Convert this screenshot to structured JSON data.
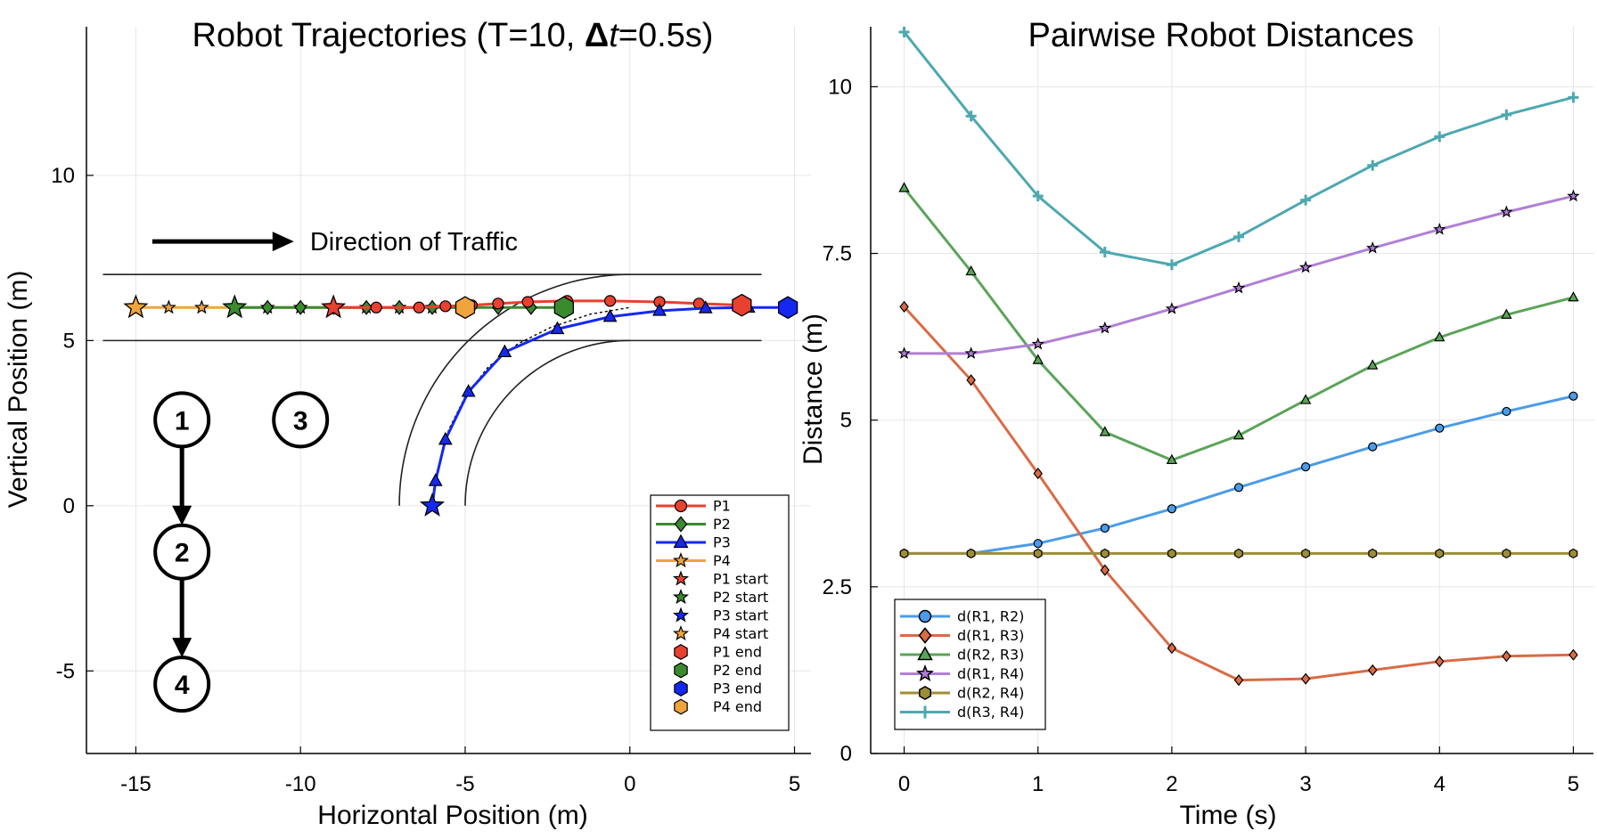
{
  "chart_data": [
    {
      "type": "line",
      "title_main": "Robot Trajectories (T=10, ",
      "title_delta": "Δ",
      "title_t": "t",
      "title_tail": "=0.5s)",
      "xlabel": "Horizontal Position (m)",
      "ylabel": "Vertical Position (m)",
      "xlim": [
        -16.5,
        5.5
      ],
      "ylim": [
        -7.5,
        14.5
      ],
      "xticks": [
        -15,
        -10,
        -5,
        0,
        5
      ],
      "yticks": [
        -5,
        0,
        5,
        10
      ],
      "grid": true,
      "road_lines": [
        {
          "x": [
            -16,
            4
          ],
          "y": [
            7,
            7
          ]
        },
        {
          "x": [
            -16,
            4
          ],
          "y": [
            5,
            5
          ]
        }
      ],
      "road_arcs": [
        {
          "cx": 0,
          "cy": 0,
          "r": 7,
          "from_deg": 180,
          "to_deg": 90
        },
        {
          "cx": 0,
          "cy": 0,
          "r": 5,
          "from_deg": 180,
          "to_deg": 90
        }
      ],
      "reference_path": {
        "x": [
          -6,
          -5.8,
          -5.5,
          -5.0,
          -4.3,
          -3.4,
          -2.4,
          -1.2,
          0
        ],
        "y": [
          0,
          1.2,
          2.3,
          3.3,
          4.2,
          4.9,
          5.4,
          5.8,
          6
        ]
      },
      "traffic_arrow": {
        "x0": -14.5,
        "x1": -10.2,
        "y": 8,
        "label": "Direction of Traffic"
      },
      "priority_nodes": [
        {
          "label": "1",
          "x": -13.6,
          "y": 2.6
        },
        {
          "label": "3",
          "x": -10.0,
          "y": 2.6
        },
        {
          "label": "2",
          "x": -13.6,
          "y": -1.4
        },
        {
          "label": "4",
          "x": -13.6,
          "y": -5.4
        }
      ],
      "priority_edges": [
        {
          "from": "1",
          "to": "2"
        },
        {
          "from": "2",
          "to": "4"
        }
      ],
      "series": [
        {
          "name": "P1",
          "color": "#e8412f",
          "marker": "circle",
          "x": [
            -9.0,
            -7.7,
            -6.4,
            -5.6,
            -4.8,
            -4.0,
            -3.1,
            -1.9,
            -0.6,
            0.9,
            2.1,
            3.4
          ],
          "y": [
            6.0,
            6.0,
            6.0,
            6.04,
            6.07,
            6.12,
            6.17,
            6.2,
            6.2,
            6.17,
            6.12,
            6.07
          ]
        },
        {
          "name": "P2",
          "color": "#3a8a2e",
          "marker": "diamond",
          "x": [
            -12.0,
            -11.0,
            -10.0,
            -9.0,
            -8.0,
            -7.0,
            -6.0,
            -5.0,
            -4.0,
            -3.0,
            -2.0
          ],
          "y": [
            6.0,
            6.0,
            6.0,
            6.0,
            6.0,
            6.0,
            6.0,
            6.0,
            6.0,
            6.0,
            6.0
          ]
        },
        {
          "name": "P3",
          "color": "#1428f0",
          "marker": "triangle",
          "x": [
            -6.0,
            -5.9,
            -5.6,
            -4.9,
            -3.8,
            -2.2,
            -0.6,
            0.9,
            2.3,
            3.6,
            4.8
          ],
          "y": [
            0.0,
            0.75,
            2.0,
            3.45,
            4.65,
            5.35,
            5.72,
            5.9,
            5.98,
            6.0,
            6.0
          ]
        },
        {
          "name": "P4",
          "color": "#f0a43c",
          "marker": "star",
          "x": [
            -15.0,
            -14.0,
            -13.0,
            -12.0,
            -11.0,
            -10.0,
            -9.0,
            -8.0,
            -7.0,
            -6.0,
            -5.0
          ],
          "y": [
            6.0,
            6.0,
            6.0,
            6.0,
            6.0,
            6.0,
            6.0,
            6.0,
            6.0,
            6.0,
            6.0
          ]
        }
      ],
      "start_markers": [
        {
          "name": "P1 start",
          "color": "#e8412f",
          "x": -9.0,
          "y": 6.0
        },
        {
          "name": "P2 start",
          "color": "#3a8a2e",
          "x": -12.0,
          "y": 6.0
        },
        {
          "name": "P3 start",
          "color": "#1428f0",
          "x": -6.0,
          "y": 0.0
        },
        {
          "name": "P4 start",
          "color": "#f0a43c",
          "x": -15.0,
          "y": 6.0
        }
      ],
      "end_markers": [
        {
          "name": "P1 end",
          "color": "#e8412f",
          "x": 3.4,
          "y": 6.07
        },
        {
          "name": "P2 end",
          "color": "#3a8a2e",
          "x": -2.0,
          "y": 6.0
        },
        {
          "name": "P3 end",
          "color": "#1428f0",
          "x": 4.8,
          "y": 6.0
        },
        {
          "name": "P4 end",
          "color": "#f0a43c",
          "x": -5.0,
          "y": 6.0
        }
      ],
      "legend_position": "bottom-right"
    },
    {
      "type": "line",
      "title": "Pairwise Robot Distances",
      "xlabel": "Time (s)",
      "ylabel": "Distance (m)",
      "xlim": [
        -0.25,
        5.15
      ],
      "ylim": [
        0,
        10.9
      ],
      "xticks": [
        0,
        1,
        2,
        3,
        4,
        5
      ],
      "yticks": [
        0,
        2.5,
        5,
        7.5,
        10
      ],
      "ytick_labels": [
        "0",
        "2.5",
        "5",
        "7.5",
        "10"
      ],
      "grid": true,
      "x": [
        0,
        0.5,
        1,
        1.5,
        2,
        2.5,
        3,
        3.5,
        4,
        4.5,
        5
      ],
      "series": [
        {
          "name": "d(R1, R2)",
          "color": "#4a9ce8",
          "marker": "circle",
          "values": [
            3.0,
            3.0,
            3.15,
            3.38,
            3.67,
            3.99,
            4.3,
            4.6,
            4.88,
            5.13,
            5.36
          ]
        },
        {
          "name": "d(R1, R3)",
          "color": "#d96b45",
          "marker": "diamond",
          "values": [
            6.7,
            5.6,
            4.2,
            2.75,
            1.58,
            1.1,
            1.12,
            1.25,
            1.38,
            1.46,
            1.48
          ]
        },
        {
          "name": "d(R2, R3)",
          "color": "#5aa458",
          "marker": "triangle",
          "values": [
            8.48,
            7.23,
            5.9,
            4.82,
            4.4,
            4.77,
            5.3,
            5.82,
            6.24,
            6.58,
            6.84
          ]
        },
        {
          "name": "d(R1, R4)",
          "color": "#b07fd6",
          "marker": "star",
          "values": [
            6.0,
            6.0,
            6.14,
            6.38,
            6.67,
            6.98,
            7.29,
            7.58,
            7.86,
            8.12,
            8.36
          ]
        },
        {
          "name": "d(R2, R4)",
          "color": "#9c8e35",
          "marker": "hexagon",
          "values": [
            3.0,
            3.0,
            3.0,
            3.0,
            3.0,
            3.0,
            3.0,
            3.0,
            3.0,
            3.0,
            3.0
          ]
        },
        {
          "name": "d(R3, R4)",
          "color": "#4ea8b0",
          "marker": "cross",
          "values": [
            10.82,
            9.56,
            8.36,
            7.52,
            7.33,
            7.75,
            8.3,
            8.82,
            9.25,
            9.58,
            9.84
          ]
        }
      ],
      "legend_position": "bottom-left"
    }
  ]
}
